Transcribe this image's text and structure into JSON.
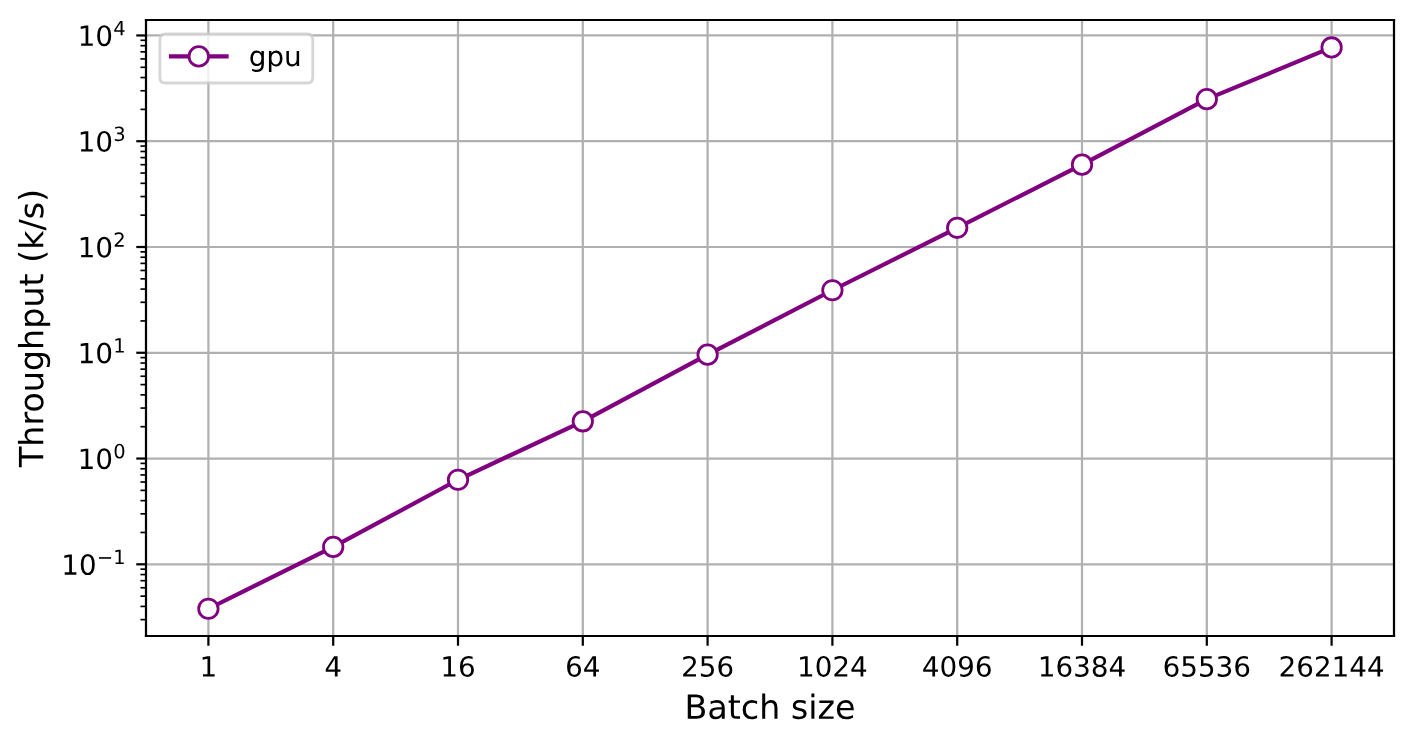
{
  "chart_data": {
    "type": "line",
    "xlabel": "Batch size",
    "ylabel": "Throughput (k/s)",
    "categories": [
      "1",
      "4",
      "16",
      "64",
      "256",
      "1024",
      "4096",
      "16384",
      "65536",
      "262144"
    ],
    "series": [
      {
        "name": "gpu",
        "color": "#800080",
        "values": [
          0.038,
          0.146,
          0.63,
          2.25,
          9.6,
          39,
          152,
          600,
          2500,
          7700
        ]
      }
    ],
    "log": "y",
    "ylim": [
      0.021,
      14000
    ],
    "yticks": [
      {
        "value": 0.1,
        "label": "10$^{−1}$"
      },
      {
        "value": 1,
        "label": "10$^{0}$"
      },
      {
        "value": 10,
        "label": "10$^{1}$"
      },
      {
        "value": 100,
        "label": "10$^{2}$"
      },
      {
        "value": 1000,
        "label": "10$^{3}$"
      },
      {
        "value": 10000,
        "label": "10$^{4}$"
      }
    ],
    "grid": true,
    "legend": "top left",
    "marker": "circle",
    "line_style": "solid"
  }
}
